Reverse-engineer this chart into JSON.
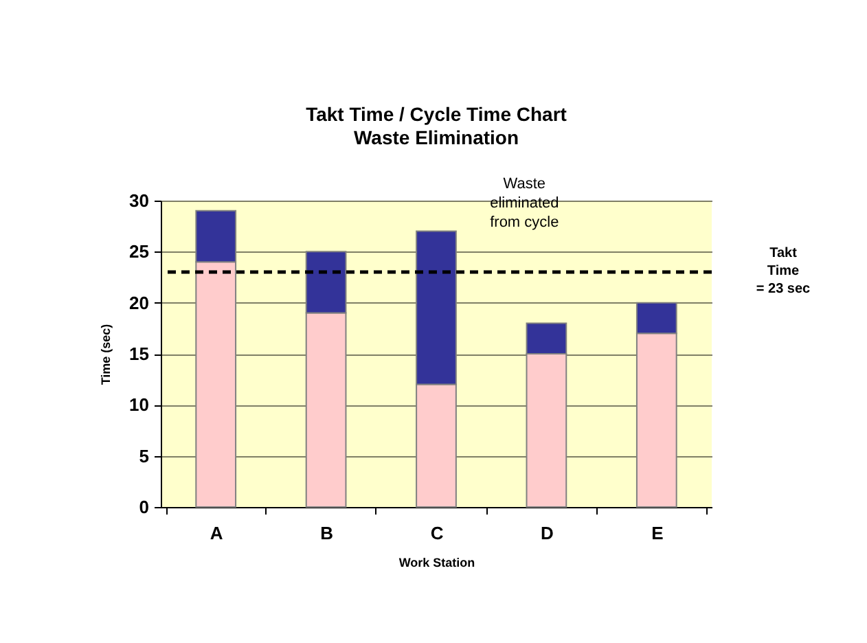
{
  "chart_data": {
    "type": "bar",
    "title": "Takt Time / Cycle Time Chart",
    "subtitle": "Waste Elimination",
    "xlabel": "Work Station",
    "ylabel": "Time (sec)",
    "categories": [
      "A",
      "B",
      "C",
      "D",
      "E"
    ],
    "series": [
      {
        "color": "#ffcccc",
        "values": [
          24,
          19,
          12,
          15,
          17
        ]
      },
      {
        "color": "#333399",
        "values": [
          5,
          6,
          15,
          3,
          3
        ]
      }
    ],
    "stacked": true,
    "ylim": [
      0,
      30
    ],
    "yticks": [
      0,
      5,
      10,
      15,
      20,
      25,
      30
    ],
    "grid": "y",
    "legend": false,
    "ref_lines": [
      {
        "axis": "y",
        "value": 23,
        "label": "Takt\nTime\n= 23 sec",
        "color": "#000000",
        "line_style": "dashed"
      }
    ],
    "annotations": [
      "Waste\neliminated\nfrom cycle"
    ]
  }
}
